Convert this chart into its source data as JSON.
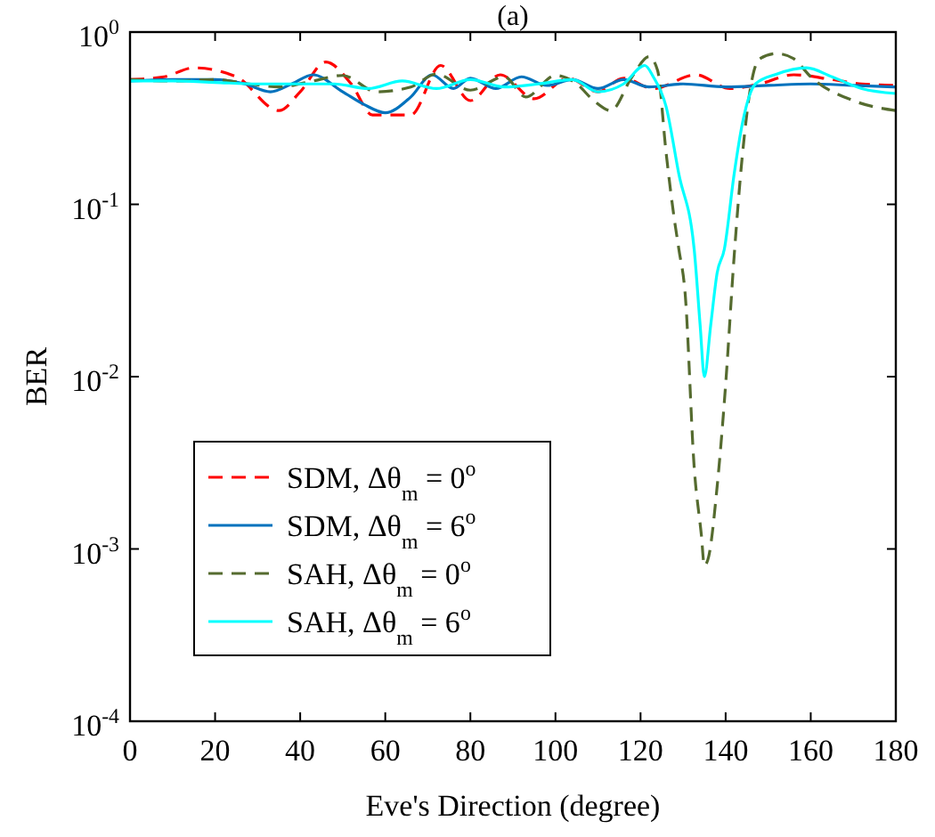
{
  "chart_data": {
    "type": "line",
    "title": "(a)",
    "xlabel": "Eve's Direction (degree)",
    "ylabel": "BER",
    "log": "y",
    "xlim": [
      0,
      180
    ],
    "xticks": [
      0,
      20,
      40,
      60,
      80,
      100,
      120,
      140,
      160,
      180
    ],
    "ylim": [
      0.0001,
      1
    ],
    "yticks": [
      {
        "value": 0.0001,
        "label": "10$^{-4}$"
      },
      {
        "value": 0.001,
        "label": "10$^{-3}$"
      },
      {
        "value": 0.01,
        "label": "10$^{-2}$"
      },
      {
        "value": 0.1,
        "label": "10$^{-1}$"
      },
      {
        "value": 1,
        "label": "10$^{0}$"
      }
    ],
    "grid": false,
    "legend": "bottom left",
    "series": [
      {
        "name": "SDM,  Δθ$_{m}$ = 0$^{o}$",
        "color": "#ff0000",
        "line_style": "dashed",
        "x": [
          0,
          8,
          15,
          25,
          35,
          40,
          46,
          52,
          57,
          66,
          73,
          80,
          87,
          95,
          103,
          110,
          116,
          123,
          133,
          141,
          148,
          156,
          165,
          172,
          180
        ],
        "values": [
          0.53,
          0.55,
          0.62,
          0.55,
          0.35,
          0.45,
          0.67,
          0.5,
          0.33,
          0.33,
          0.64,
          0.4,
          0.565,
          0.41,
          0.54,
          0.45,
          0.54,
          0.47,
          0.565,
          0.47,
          0.5,
          0.565,
          0.53,
          0.5,
          0.49
        ]
      },
      {
        "name": "SDM,  Δθ$_{m}$ = 6$^{o}$",
        "color": "#0072bd",
        "line_style": "solid",
        "x": [
          0,
          10,
          20,
          27,
          33,
          38,
          43,
          50,
          55,
          60,
          66,
          71,
          76,
          80,
          86,
          92,
          98,
          104,
          110,
          116,
          122,
          130,
          140,
          150,
          160,
          170,
          180
        ],
        "values": [
          0.52,
          0.53,
          0.53,
          0.5,
          0.45,
          0.5,
          0.565,
          0.45,
          0.38,
          0.34,
          0.42,
          0.565,
          0.47,
          0.54,
          0.47,
          0.55,
          0.49,
          0.53,
          0.47,
          0.53,
          0.48,
          0.5,
          0.48,
          0.49,
          0.5,
          0.49,
          0.48
        ]
      },
      {
        "name": "SAH,  Δθ$_{m}$ = 0$^{o}$",
        "color": "#556b2f",
        "line_style": "dashed",
        "x": [
          0,
          10,
          20,
          28,
          35,
          43,
          50,
          58,
          66,
          72,
          80,
          88,
          93,
          100,
          105,
          109,
          113,
          118,
          122,
          124,
          126,
          128,
          129,
          130.5,
          132.6,
          134.3,
          135,
          136,
          138,
          140,
          142,
          144,
          146,
          148,
          152,
          156,
          160,
          170,
          180
        ],
        "values": [
          0.53,
          0.52,
          0.53,
          0.5,
          0.48,
          0.52,
          0.56,
          0.45,
          0.48,
          0.57,
          0.46,
          0.55,
          0.42,
          0.56,
          0.5,
          0.4,
          0.35,
          0.55,
          0.72,
          0.6,
          0.2,
          0.08,
          0.055,
          0.03,
          0.003,
          0.0012,
          0.0008,
          0.0009,
          0.0023,
          0.009,
          0.05,
          0.2,
          0.5,
          0.7,
          0.75,
          0.7,
          0.55,
          0.4,
          0.35
        ]
      },
      {
        "name": "SAH,  Δθ$_{m}$ = 6$^{o}$",
        "color": "#00ffff",
        "line_style": "solid",
        "x": [
          0,
          10,
          20,
          30,
          40,
          48,
          56,
          64,
          72,
          80,
          88,
          96,
          104,
          110,
          116,
          121,
          123,
          126,
          129,
          132.6,
          134,
          135,
          136.5,
          138,
          139.7,
          142,
          144,
          147,
          152,
          159,
          165,
          172,
          180
        ],
        "values": [
          0.52,
          0.52,
          0.51,
          0.5,
          0.5,
          0.5,
          0.47,
          0.52,
          0.47,
          0.53,
          0.48,
          0.5,
          0.53,
          0.45,
          0.5,
          0.64,
          0.55,
          0.37,
          0.15,
          0.055,
          0.02,
          0.01,
          0.02,
          0.04,
          0.055,
          0.15,
          0.3,
          0.5,
          0.57,
          0.62,
          0.55,
          0.47,
          0.44
        ]
      }
    ]
  }
}
